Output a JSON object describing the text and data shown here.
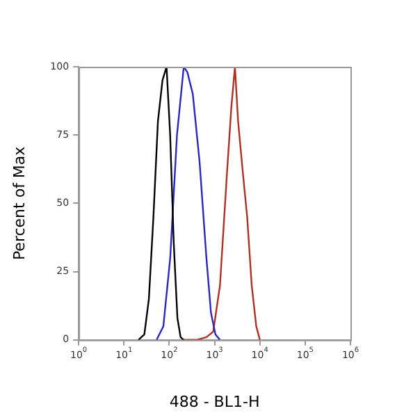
{
  "chart_data": {
    "type": "line",
    "xlabel": "488 - BL1-H",
    "ylabel": "Percent of Max",
    "log": "x",
    "xlim": [
      1,
      1000000
    ],
    "xticks": [
      {
        "value": 1,
        "label": "10$^{0}$"
      },
      {
        "value": 10,
        "label": "10$^{1}$"
      },
      {
        "value": 100,
        "label": "10$^{2}$"
      },
      {
        "value": 1000,
        "label": "10$^{3}$"
      },
      {
        "value": 10000,
        "label": "10$^{4}$"
      },
      {
        "value": 100000,
        "label": "10$^{5}$"
      },
      {
        "value": 1000000,
        "label": "10$^{6}$"
      }
    ],
    "ylim": [
      0,
      100
    ],
    "yticks": [
      0,
      25,
      50,
      75,
      100
    ],
    "grid": false,
    "legend": false,
    "marker": "none",
    "line_style": "solid",
    "series": [
      {
        "color": "#000000",
        "x": [
          20.9,
          28.2,
          35.5,
          44.7,
          56.2,
          70.8,
          87.1,
          104.7,
          125.9,
          151.4,
          177.8,
          208.9
        ],
        "values": [
          0,
          2,
          15,
          45,
          80,
          95,
          100,
          75,
          35,
          8,
          1,
          0
        ]
      },
      {
        "color": "#2828c0",
        "x": [
          52.5,
          74.1,
          105,
          148,
          209,
          251,
          331,
          468,
          661,
          832,
          1047,
          1318
        ],
        "values": [
          0,
          5,
          30,
          75,
          100,
          98,
          90,
          65,
          30,
          10,
          2,
          0
        ]
      },
      {
        "color": "#b03020",
        "x": [
          209,
          398,
          661,
          933,
          1318,
          1862,
          2344,
          2818,
          3311,
          4169,
          5248,
          6607,
          8318,
          10000
        ],
        "values": [
          0,
          0,
          1,
          3,
          20,
          60,
          85,
          100,
          80,
          62,
          45,
          20,
          5,
          0
        ]
      }
    ]
  }
}
